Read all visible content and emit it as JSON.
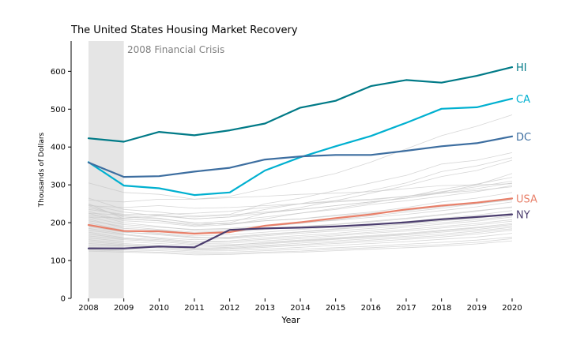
{
  "chart_data": {
    "type": "line",
    "title": "The United States Housing Market Recovery",
    "xlabel": "Year",
    "ylabel": "Thousands of Dollars",
    "ylim": [
      0,
      680
    ],
    "yticks": [
      0,
      100,
      200,
      300,
      400,
      500,
      600
    ],
    "x": [
      "2008",
      "2009",
      "2010",
      "2011",
      "2012",
      "2013",
      "2014",
      "2015",
      "2016",
      "2017",
      "2018",
      "2019",
      "2020"
    ],
    "shaded_region": {
      "label": "2008 Financial Crisis",
      "from": "2008",
      "to": "2009",
      "color": "#e5e5e5"
    },
    "grid": false,
    "legend": "inline-right",
    "series": [
      {
        "name": "HI",
        "color": "#007a87",
        "values": [
          423,
          414,
          440,
          431,
          444,
          462,
          504,
          522,
          561,
          577,
          570,
          588,
          611
        ]
      },
      {
        "name": "CA",
        "color": "#00b0d0",
        "values": [
          360,
          298,
          291,
          273,
          280,
          338,
          373,
          402,
          429,
          464,
          501,
          505,
          528
        ]
      },
      {
        "name": "DC",
        "color": "#3d6ea0",
        "values": [
          359,
          321,
          323,
          335,
          345,
          367,
          375,
          379,
          379,
          390,
          402,
          410,
          428
        ]
      },
      {
        "name": "USA",
        "color": "#e8806a",
        "values": [
          194,
          178,
          177,
          171,
          175,
          192,
          201,
          212,
          222,
          235,
          245,
          253,
          264
        ]
      },
      {
        "name": "NY",
        "color": "#4b3d6e",
        "values": [
          132,
          132,
          137,
          135,
          181,
          185,
          187,
          190,
          195,
          201,
          209,
          215,
          222
        ]
      }
    ],
    "background_series_color": "#c8c8c8",
    "background_series": [
      [
        305,
        280,
        275,
        262,
        270,
        290,
        310,
        330,
        360,
        395,
        430,
        455,
        485
      ],
      [
        265,
        235,
        228,
        218,
        222,
        250,
        265,
        285,
        305,
        325,
        355,
        365,
        385
      ],
      [
        250,
        210,
        205,
        192,
        200,
        225,
        240,
        258,
        278,
        298,
        322,
        338,
        365
      ],
      [
        248,
        228,
        218,
        210,
        215,
        235,
        250,
        268,
        285,
        305,
        335,
        350,
        372
      ],
      [
        245,
        215,
        210,
        200,
        195,
        210,
        225,
        238,
        252,
        268,
        288,
        302,
        320
      ],
      [
        240,
        218,
        212,
        198,
        205,
        215,
        225,
        235,
        248,
        258,
        270,
        282,
        298
      ],
      [
        235,
        222,
        220,
        210,
        215,
        225,
        235,
        245,
        255,
        265,
        278,
        290,
        305
      ],
      [
        230,
        205,
        200,
        190,
        195,
        205,
        210,
        220,
        228,
        240,
        255,
        265,
        280
      ],
      [
        225,
        200,
        190,
        180,
        182,
        190,
        198,
        208,
        218,
        228,
        238,
        250,
        262
      ],
      [
        220,
        210,
        205,
        195,
        198,
        205,
        210,
        218,
        225,
        232,
        242,
        250,
        260
      ],
      [
        215,
        195,
        188,
        182,
        185,
        192,
        200,
        206,
        214,
        222,
        232,
        242,
        255
      ],
      [
        210,
        185,
        180,
        172,
        175,
        182,
        188,
        195,
        202,
        210,
        220,
        230,
        242
      ],
      [
        205,
        190,
        182,
        175,
        178,
        185,
        190,
        196,
        204,
        212,
        222,
        232,
        240
      ],
      [
        200,
        180,
        172,
        165,
        168,
        175,
        182,
        188,
        195,
        203,
        212,
        220,
        232
      ],
      [
        195,
        175,
        170,
        162,
        160,
        168,
        175,
        182,
        190,
        198,
        205,
        214,
        225
      ],
      [
        190,
        175,
        168,
        160,
        162,
        170,
        176,
        184,
        190,
        196,
        205,
        212,
        222
      ],
      [
        185,
        170,
        160,
        155,
        158,
        165,
        172,
        178,
        185,
        192,
        200,
        208,
        218
      ],
      [
        180,
        168,
        158,
        150,
        152,
        160,
        166,
        172,
        180,
        188,
        196,
        204,
        215
      ],
      [
        175,
        160,
        155,
        148,
        150,
        156,
        162,
        168,
        175,
        182,
        190,
        198,
        208
      ],
      [
        170,
        158,
        152,
        145,
        146,
        152,
        158,
        165,
        172,
        178,
        186,
        194,
        204
      ],
      [
        165,
        155,
        150,
        142,
        140,
        148,
        154,
        160,
        166,
        172,
        180,
        188,
        198
      ],
      [
        160,
        150,
        145,
        140,
        142,
        146,
        152,
        158,
        164,
        170,
        178,
        186,
        195
      ],
      [
        155,
        145,
        140,
        135,
        138,
        144,
        150,
        156,
        162,
        168,
        175,
        182,
        192
      ],
      [
        150,
        142,
        138,
        132,
        135,
        140,
        146,
        152,
        158,
        164,
        170,
        178,
        188
      ],
      [
        145,
        140,
        136,
        130,
        132,
        138,
        142,
        148,
        154,
        160,
        166,
        174,
        184
      ],
      [
        140,
        138,
        134,
        128,
        130,
        135,
        140,
        145,
        150,
        156,
        162,
        170,
        180
      ],
      [
        135,
        132,
        130,
        125,
        126,
        130,
        135,
        140,
        145,
        150,
        156,
        162,
        172
      ],
      [
        130,
        128,
        126,
        122,
        122,
        126,
        130,
        134,
        138,
        143,
        148,
        154,
        162
      ],
      [
        128,
        125,
        122,
        118,
        118,
        122,
        125,
        130,
        134,
        138,
        142,
        148,
        158
      ],
      [
        125,
        122,
        120,
        115,
        116,
        120,
        122,
        126,
        130,
        134,
        138,
        144,
        152
      ],
      [
        245,
        240,
        245,
        238,
        240,
        245,
        250,
        258,
        262,
        270,
        278,
        285,
        295
      ],
      [
        215,
        212,
        218,
        215,
        220,
        228,
        235,
        245,
        255,
        265,
        280,
        300,
        330
      ],
      [
        225,
        220,
        222,
        225,
        230,
        240,
        250,
        255,
        260,
        270,
        282,
        295,
        310
      ],
      [
        260,
        255,
        262,
        262,
        266,
        270,
        275,
        278,
        282,
        290,
        298,
        300,
        303
      ]
    ]
  }
}
